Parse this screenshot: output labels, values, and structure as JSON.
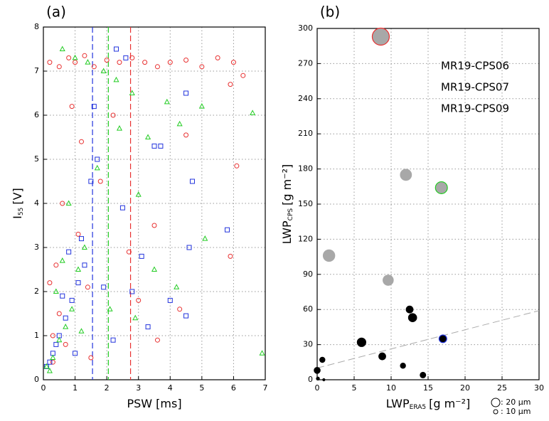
{
  "chart_data": [
    {
      "type": "scatter",
      "title": "(a)",
      "x_label": "PSW [ms]",
      "y_label": "I",
      "y_label_sub": "55",
      "y_label_unit": "[V]",
      "xlim": [
        0,
        7
      ],
      "ylim": [
        0,
        8
      ],
      "xticks": [
        0,
        1,
        2,
        3,
        4,
        5,
        6,
        7
      ],
      "yticks": [
        0,
        1,
        2,
        3,
        4,
        5,
        6,
        7,
        8
      ],
      "grid": true,
      "series": [
        {
          "name": "MR19-CPS06",
          "color": "#e83030",
          "marker": "circle",
          "x": [
            0.2,
            0.5,
            0.8,
            1.0,
            1.3,
            1.6,
            2.0,
            2.4,
            2.8,
            3.2,
            3.6,
            4.0,
            4.5,
            5.0,
            5.5,
            6.0,
            6.3,
            5.9,
            4.5,
            6.1,
            0.9,
            1.2,
            0.6,
            1.1,
            0.4,
            0.2,
            0.5,
            0.3,
            0.7,
            1.5,
            3.6,
            4.3,
            5.9,
            2.7,
            3.0,
            0.3,
            1.8,
            2.2,
            3.5,
            1.4
          ],
          "y": [
            7.2,
            7.1,
            7.3,
            7.2,
            7.35,
            7.1,
            7.25,
            7.2,
            7.3,
            7.2,
            7.1,
            7.2,
            7.25,
            7.1,
            7.3,
            7.2,
            6.9,
            6.7,
            5.55,
            4.85,
            6.2,
            5.4,
            4.0,
            3.3,
            2.6,
            2.2,
            1.5,
            1.0,
            0.8,
            0.5,
            0.9,
            1.6,
            2.8,
            2.9,
            1.8,
            0.4,
            4.5,
            6.0,
            3.5,
            2.1
          ]
        },
        {
          "name": "MR19-CPS07",
          "color": "#2233dd",
          "marker": "square",
          "x": [
            0.1,
            0.3,
            0.5,
            0.7,
            0.9,
            1.1,
            1.3,
            0.4,
            0.6,
            0.8,
            1.2,
            1.5,
            1.6,
            1.7,
            2.3,
            2.6,
            3.5,
            3.7,
            4.5,
            4.7,
            5.8,
            4.5,
            3.3,
            2.8,
            1.9,
            4.6,
            4.0,
            2.2,
            1.0,
            0.2,
            3.1,
            2.5
          ],
          "y": [
            0.3,
            0.6,
            1.0,
            1.4,
            1.8,
            2.2,
            2.6,
            0.8,
            1.9,
            2.9,
            3.2,
            4.5,
            6.2,
            5.0,
            7.5,
            7.3,
            5.3,
            5.3,
            6.5,
            4.5,
            3.4,
            1.45,
            1.2,
            2.0,
            2.1,
            3.0,
            1.8,
            0.9,
            0.6,
            0.4,
            2.8,
            3.9
          ]
        },
        {
          "name": "MR19-CPS09",
          "color": "#22cc22",
          "marker": "triangle",
          "x": [
            0.1,
            0.3,
            0.5,
            0.7,
            0.9,
            1.1,
            1.3,
            0.4,
            0.6,
            0.8,
            1.0,
            1.4,
            1.9,
            0.6,
            2.3,
            2.8,
            3.3,
            3.9,
            4.3,
            5.0,
            6.6,
            6.9,
            3.5,
            2.9,
            2.1,
            5.1,
            4.2,
            1.7,
            2.4,
            1.2,
            0.2,
            3.0
          ],
          "y": [
            0.3,
            0.5,
            0.9,
            1.2,
            1.6,
            2.5,
            3.0,
            2.0,
            2.7,
            4.0,
            7.3,
            7.2,
            7.0,
            7.5,
            6.8,
            6.5,
            5.5,
            6.3,
            5.8,
            6.2,
            6.05,
            0.6,
            2.5,
            1.4,
            1.6,
            3.2,
            2.1,
            4.8,
            5.7,
            1.1,
            0.2,
            4.2
          ]
        }
      ],
      "vlines": [
        {
          "x": 1.55,
          "color": "#2233dd"
        },
        {
          "x": 2.05,
          "color": "#22cc22"
        },
        {
          "x": 2.75,
          "color": "#e83030"
        }
      ]
    },
    {
      "type": "bubble",
      "title": "(b)",
      "x_label": "LWP",
      "x_label_sub": "ERA5",
      "x_label_unit": "[g m⁻²]",
      "y_label": "LWP",
      "y_label_sub": "CPS",
      "y_label_unit": "[g m⁻²]",
      "xlim": [
        0,
        30
      ],
      "ylim": [
        0,
        300
      ],
      "xticks": [
        0,
        5,
        10,
        15,
        20,
        25,
        30
      ],
      "yticks": [
        0,
        30,
        60,
        90,
        120,
        150,
        180,
        210,
        240,
        270,
        300
      ],
      "grid": true,
      "x": [
        8.6,
        12,
        16.8,
        1.6,
        9.6,
        12.5,
        12.9,
        6.0,
        17,
        8.8,
        0.7,
        11.6,
        14.3,
        0,
        0.1,
        0.9
      ],
      "y": [
        293,
        175,
        164,
        106,
        85,
        60,
        53,
        32,
        35,
        20,
        17,
        12,
        4,
        8,
        1,
        0
      ],
      "sizes": [
        40,
        26,
        28,
        27,
        24,
        16,
        19,
        20,
        18,
        16,
        12,
        12,
        13,
        14,
        7,
        5
      ],
      "colors": [
        "#a8a8a8",
        "#a8a8a8",
        "#a8a8a8",
        "#a8a8a8",
        "#a8a8a8",
        "#000000",
        "#000000",
        "#000000",
        "#000000",
        "#000000",
        "#000000",
        "#000000",
        "#000000",
        "#000000",
        "#000000",
        "#000000"
      ],
      "edge_colors": [
        "#e83030",
        "#a8a8a8",
        "#22cc22",
        "#a8a8a8",
        "#a8a8a8",
        "#000000",
        "#000000",
        "#000000",
        "#2233dd",
        "#000000",
        "#000000",
        "#000000",
        "#000000",
        "#000000",
        "#000000",
        "#000000"
      ],
      "legend": [
        {
          "name": "MR19-CPS06",
          "color": "#e83030"
        },
        {
          "name": "MR19-CPS07",
          "color": "#2233dd"
        },
        {
          "name": "MR19-CPS09",
          "color": "#22cc22"
        }
      ],
      "size_legend": [
        {
          "value": 20,
          "label": ": 20 μm"
        },
        {
          "value": 10,
          "label": ": 10 μm"
        }
      ],
      "fit_line": {
        "x": [
          0,
          30
        ],
        "y": [
          10,
          59
        ],
        "color": "#aaaaaa"
      }
    }
  ]
}
